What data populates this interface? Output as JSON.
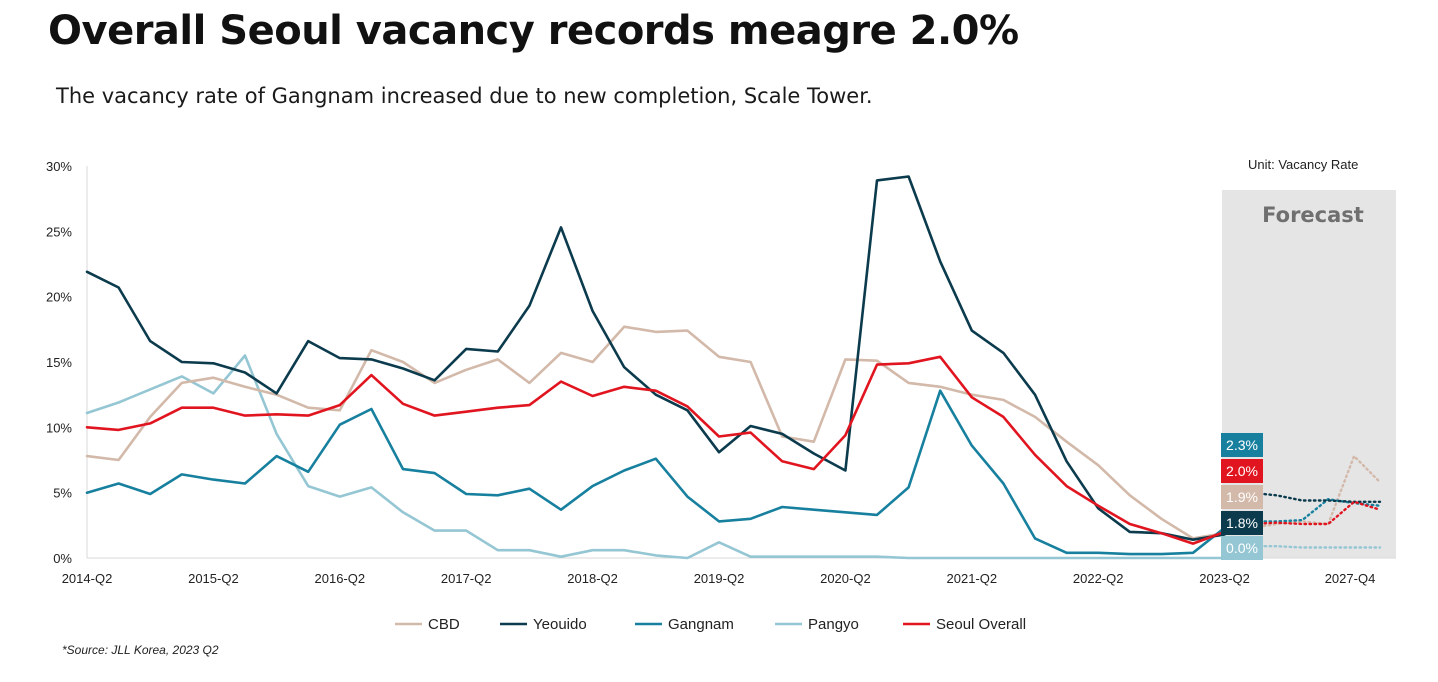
{
  "header": {
    "title": "Overall Seoul vacancy records meagre 2.0%",
    "subtitle": "The vacancy rate of Gangnam increased due to new completion, Scale Tower."
  },
  "unit_label": "Unit: Vacancy Rate",
  "forecast_label": "Forecast",
  "source": "*Source: JLL Korea, 2023 Q2",
  "colors": {
    "cbd": "#d3b9a9",
    "yeouido": "#0b3b4d",
    "gangnam": "#17809f",
    "pangyo": "#95c6d3",
    "seoul": "#e1151f",
    "forecast_bg": "#e5e5e6"
  },
  "chart_data": {
    "type": "line",
    "title": "Overall Seoul vacancy records meagre 2.0%",
    "subtitle": "The vacancy rate of Gangnam increased due to new completion, Scale Tower.",
    "x_tick_labels": [
      "2014-Q2",
      "2015-Q2",
      "2016-Q2",
      "2017-Q2",
      "2018-Q2",
      "2019-Q2",
      "2020-Q2",
      "2021-Q2",
      "2022-Q2",
      "2023-Q2",
      "2027-Q4"
    ],
    "y_tick_labels": [
      "0%",
      "5%",
      "10%",
      "15%",
      "20%",
      "25%",
      "30%"
    ],
    "ylim": [
      0,
      30
    ],
    "grid": false,
    "legend_position": "bottom",
    "forecast_region": {
      "from_index": 36,
      "label": "Forecast"
    },
    "x_start": "2014-Q2",
    "x_last_historical": "2023-Q2",
    "series": [
      {
        "name": "CBD",
        "color": "#d3b9a9",
        "historical": [
          7.8,
          7.5,
          10.8,
          13.4,
          13.8,
          13.1,
          12.5,
          11.5,
          11.3,
          15.9,
          15.0,
          13.4,
          14.4,
          15.2,
          13.4,
          15.7,
          15.0,
          17.7,
          17.3,
          17.4,
          15.4,
          15.0,
          9.3,
          8.9,
          15.2,
          15.1,
          13.4,
          13.1,
          12.5,
          12.1,
          10.8,
          8.9,
          7.1,
          4.8,
          3.0,
          1.5,
          1.9
        ],
        "forecast": [
          1.9,
          2.3,
          2.6,
          2.8,
          2.6,
          7.8,
          5.8
        ],
        "end_label": "1.9%"
      },
      {
        "name": "Yeouido",
        "color": "#0b3b4d",
        "historical": [
          21.9,
          20.7,
          16.6,
          15.0,
          14.9,
          14.2,
          12.6,
          16.6,
          15.3,
          15.2,
          14.5,
          13.6,
          16.0,
          15.8,
          19.3,
          25.3,
          18.9,
          14.6,
          12.5,
          11.3,
          8.1,
          10.1,
          9.5,
          8.0,
          6.7,
          28.9,
          29.2,
          22.7,
          17.4,
          15.7,
          12.5,
          7.4,
          3.8,
          2.0,
          1.9,
          1.4,
          1.8
        ],
        "forecast": [
          5.0,
          5.0,
          4.8,
          4.4,
          4.4,
          4.3,
          4.3
        ],
        "end_label": "1.8%"
      },
      {
        "name": "Gangnam",
        "color": "#17809f",
        "historical": [
          5.0,
          5.7,
          4.9,
          6.4,
          6.0,
          5.7,
          7.8,
          6.6,
          10.2,
          11.4,
          6.8,
          6.5,
          4.9,
          4.8,
          5.3,
          3.7,
          5.5,
          6.7,
          7.6,
          4.7,
          2.8,
          3.0,
          3.9,
          3.7,
          3.5,
          3.3,
          5.4,
          12.8,
          8.6,
          5.7,
          1.5,
          0.4,
          0.4,
          0.3,
          0.3,
          0.4,
          2.3
        ],
        "forecast": [
          2.7,
          2.8,
          2.8,
          2.9,
          4.5,
          4.2,
          4.0
        ],
        "end_label": "2.3%"
      },
      {
        "name": "Pangyo",
        "color": "#95c6d3",
        "historical": [
          11.1,
          11.9,
          12.9,
          13.9,
          12.6,
          15.5,
          9.5,
          5.5,
          4.7,
          5.4,
          3.5,
          2.1,
          2.1,
          0.6,
          0.6,
          0.1,
          0.6,
          0.6,
          0.2,
          0.0,
          1.2,
          0.1,
          0.1,
          0.1,
          0.1,
          0.1,
          0.0,
          0.0,
          0.0,
          0.0,
          0.0,
          0.0,
          0.0,
          0.0,
          0.0,
          0.0,
          0.0
        ],
        "forecast": [
          0.9,
          0.9,
          0.9,
          0.8,
          0.8,
          0.8,
          0.8
        ],
        "end_label": "0.0%"
      },
      {
        "name": "Seoul Overall",
        "color": "#e1151f",
        "historical": [
          10.0,
          9.8,
          10.3,
          11.5,
          11.5,
          10.9,
          11.0,
          10.9,
          11.7,
          14.0,
          11.8,
          10.9,
          11.2,
          11.5,
          11.7,
          13.5,
          12.4,
          13.1,
          12.8,
          11.6,
          9.3,
          9.6,
          7.4,
          6.8,
          9.4,
          14.8,
          14.9,
          15.4,
          12.3,
          10.8,
          7.9,
          5.5,
          4.0,
          2.6,
          1.9,
          1.1,
          2.0
        ],
        "forecast": [
          2.6,
          2.6,
          2.7,
          2.6,
          2.6,
          4.3,
          3.7
        ],
        "end_label": "2.0%"
      }
    ]
  },
  "legend": {
    "items": [
      {
        "label": "CBD",
        "color": "#d3b9a9"
      },
      {
        "label": "Yeouido",
        "color": "#0b3b4d"
      },
      {
        "label": "Gangnam",
        "color": "#17809f"
      },
      {
        "label": "Pangyo",
        "color": "#95c6d3"
      },
      {
        "label": "Seoul Overall",
        "color": "#e1151f"
      }
    ]
  }
}
